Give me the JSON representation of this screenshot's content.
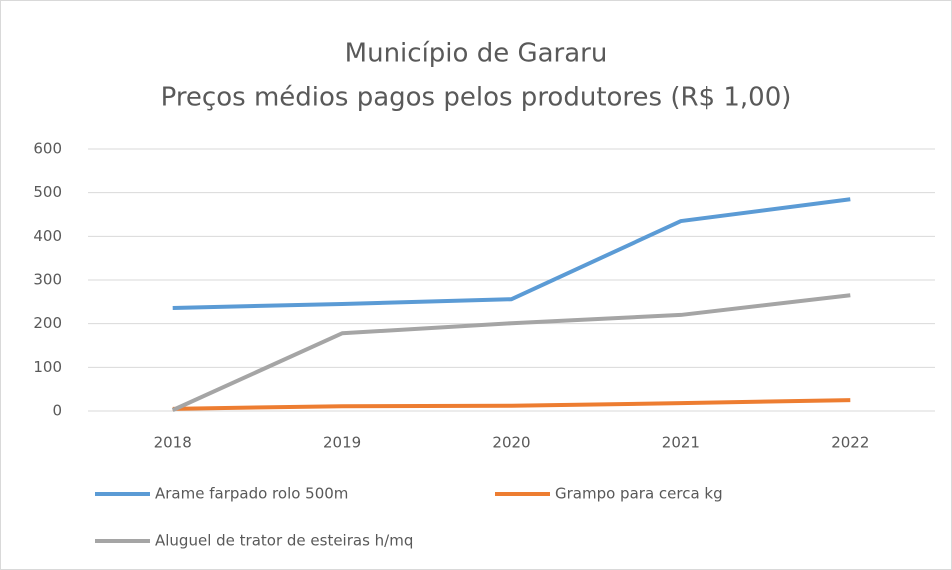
{
  "chart_data": {
    "type": "line",
    "title": "Município de Gararu",
    "subtitle": "Preços médios pagos pelos produtores (R$ 1,00)",
    "categories": [
      "2018",
      "2019",
      "2020",
      "2021",
      "2022"
    ],
    "series": [
      {
        "name": "Arame farpado rolo 500m",
        "color": "#5b9bd5",
        "values": [
          236,
          245,
          256,
          435,
          485
        ]
      },
      {
        "name": "Grampo para cerca kg",
        "color": "#ed7d31",
        "values": [
          5,
          11,
          12,
          18,
          25
        ]
      },
      {
        "name": "Aluguel de trator de esteiras h/mq",
        "color": "#a5a5a5",
        "values": [
          2,
          178,
          201,
          220,
          265
        ]
      }
    ],
    "ylim": [
      0,
      600
    ],
    "yticks": [
      0,
      100,
      200,
      300,
      400,
      500,
      600
    ],
    "grid": true,
    "legend": "bottom"
  }
}
